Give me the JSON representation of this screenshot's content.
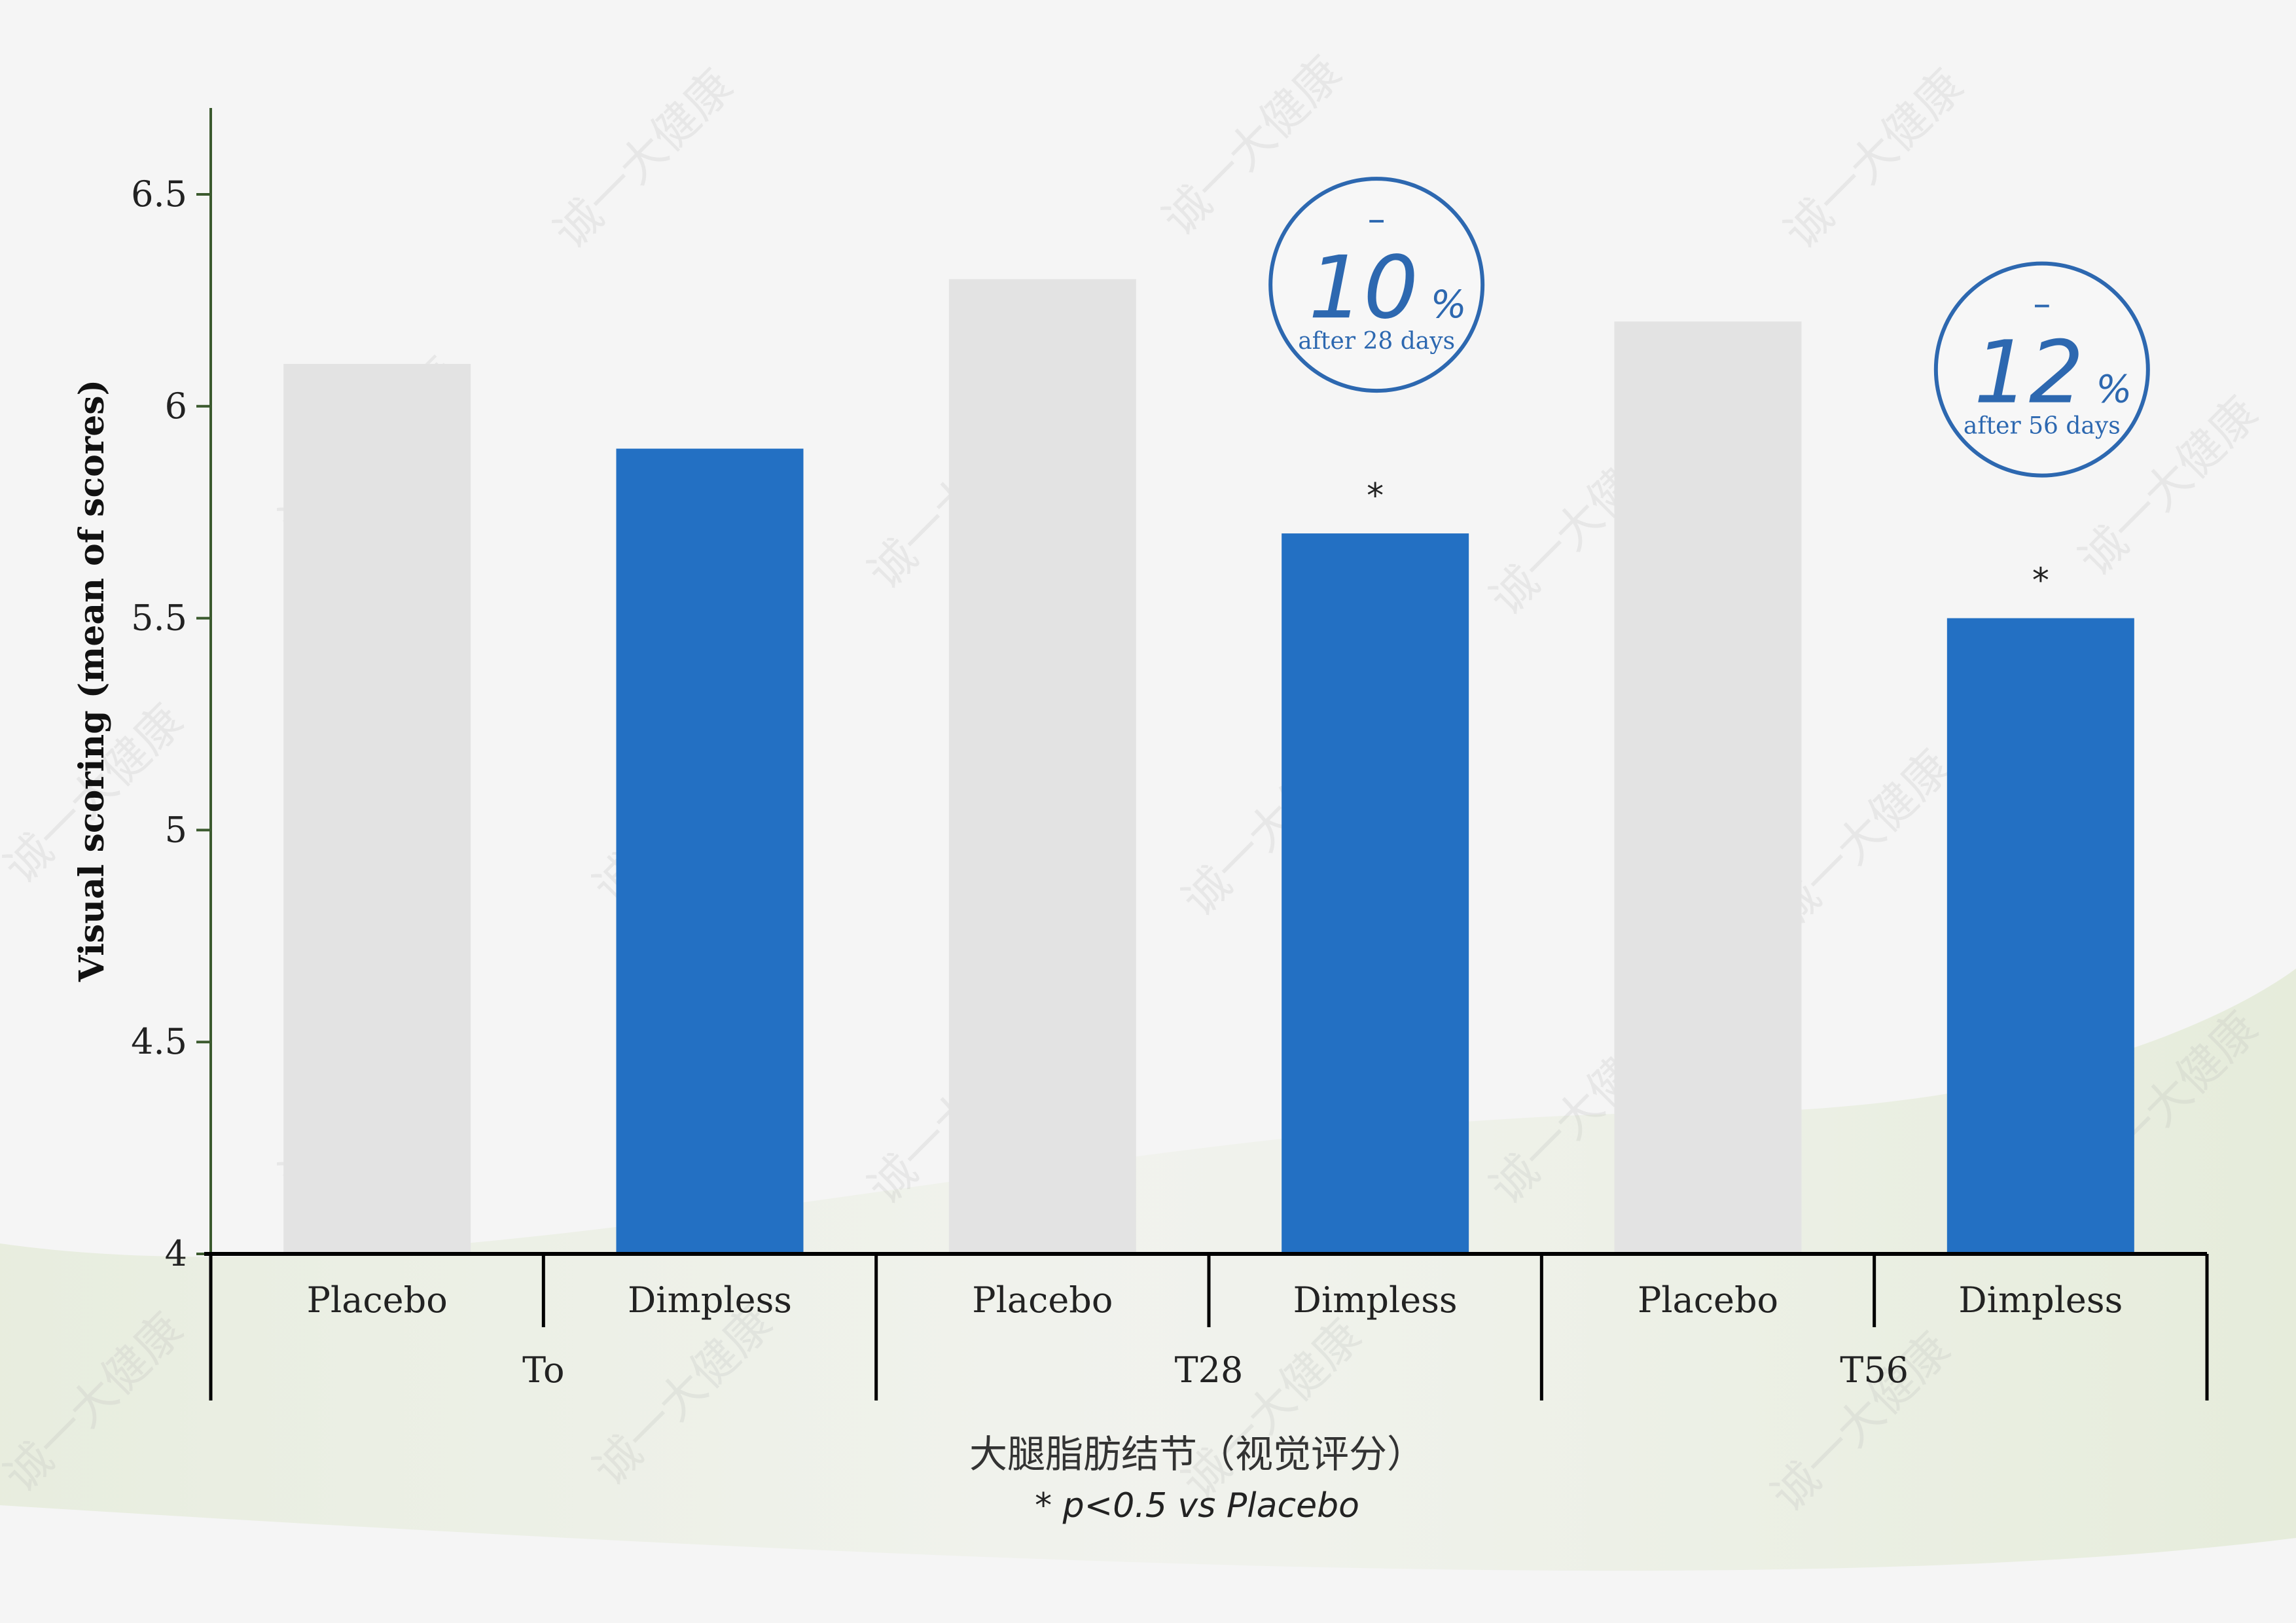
{
  "chart_data": {
    "type": "bar",
    "ylabel": "Visual scoring (mean of scores)",
    "xlabel": "大腿脂肪结节（视觉评分）",
    "footnote": "* p<0.5 vs Placebo",
    "ylim": [
      4,
      6.7
    ],
    "yticks": [
      "4",
      "4.5",
      "5",
      "5.5",
      "6",
      "6.5"
    ],
    "ytick_values": [
      4,
      4.5,
      5,
      5.5,
      6,
      6.5
    ],
    "groups": [
      "To",
      "T28",
      "T56"
    ],
    "categories": [
      "Placebo",
      "Dimpless",
      "Placebo",
      "Dimpless",
      "Placebo",
      "Dimpless"
    ],
    "values": [
      6.1,
      5.9,
      6.3,
      5.7,
      6.2,
      5.5
    ],
    "significance": [
      "",
      "",
      "",
      "*",
      "",
      "*"
    ],
    "badges": [
      {
        "minus": "–",
        "value": "10",
        "unit": "%",
        "caption": "after 28 days",
        "bar_index": 3
      },
      {
        "minus": "–",
        "value": "12",
        "unit": "%",
        "caption": "after 56 days",
        "bar_index": 5
      }
    ],
    "watermark": "诚一大健康",
    "colors": {
      "placebo": "#e3e3e3",
      "dimpless": "#2370c3",
      "axis": "#000000",
      "yaxis": "#3b5a2e",
      "badge": "#2d68b0",
      "background": "#f5f5f5"
    },
    "grid": false,
    "legend": "none"
  }
}
